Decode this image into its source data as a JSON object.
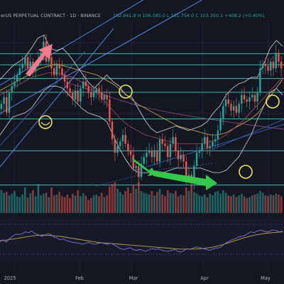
{
  "header": {
    "symbol": "erUS PERPETUAL CONTRACT · 1D · BINANCE",
    "ohlc": "102,941.9  H 106,085.0  L 101,754.0  C 103,350.1  +408.2 (+0.40%)"
  },
  "chart_data": {
    "type": "candlestick",
    "title": "erUS PERPETUAL CONTRACT · 1D · BINANCE",
    "timeframe": "1D",
    "exchange": "BINANCE",
    "x_tick_labels": [
      "2025",
      "Feb",
      "Mar",
      "Apr",
      "May"
    ],
    "ohlc": {
      "open": 102941.9,
      "high": 106085.0,
      "low": 101754.0,
      "close": 103350.1,
      "change": 408.2,
      "change_pct": 0.4
    },
    "grid": true,
    "colors": {
      "background": "#131722",
      "up": "#26a69a",
      "down": "#ef5350",
      "horizontal_levels": "#4dd0b8",
      "bollinger": "#d1d4dc",
      "trendline": "#5c8df6",
      "highlight_circle": "#f2e35a",
      "bearish_arrow": "#f07b8a",
      "bullish_arrow": "#35c84b",
      "rsi_line": "#7e6fd6",
      "rsi_ma": "#c8a24a"
    },
    "series": [
      {
        "type": "candles",
        "close": [
          95.0,
          96.5,
          93.0,
          97.5,
          99.0,
          100.0,
          101.5,
          103.0,
          104.0,
          105.5,
          103.0,
          104.5,
          102.5,
          103.5,
          105.0,
          106.5,
          109.0,
          104.5,
          105.5,
          103.0,
          101.5,
          104.0,
          103.0,
          101.5,
          100.0,
          98.5,
          97.5,
          96.0,
          98.0,
          95.5,
          98.5,
          100.0,
          99.0,
          97.5,
          96.5,
          97.5,
          98.5,
          97.5,
          96.0,
          97.0,
          96.0,
          91.0,
          87.0,
          84.0,
          85.5,
          86.5,
          88.0,
          86.0,
          84.5,
          83.5,
          80.5,
          81.0,
          78.5,
          81.5,
          83.0,
          84.0,
          84.5,
          83.0,
          84.5,
          82.0,
          87.0,
          86.0,
          85.5,
          83.0,
          86.0,
          87.5,
          84.5,
          82.5,
          83.5,
          82.0,
          78.5,
          79.0,
          77.5,
          81.0,
          84.0,
          84.5,
          86.0,
          87.5,
          85.0,
          85.5,
          86.5,
          87.0,
          89.0,
          91.5,
          94.5,
          96.0,
          95.0,
          93.5,
          94.5,
          93.0,
          95.0,
          97.0,
          96.0,
          95.5,
          96.5,
          97.0,
          95.5,
          97.5,
          103.0,
          104.0,
          103.5,
          102.5,
          104.5,
          103.0,
          106.5,
          104.5,
          103.0
        ],
        "volume": [
          52,
          46,
          48,
          40,
          44,
          50,
          38,
          36,
          42,
          58,
          35,
          45,
          52,
          38,
          66,
          40,
          44,
          46,
          36,
          58,
          40,
          42,
          48,
          38,
          36,
          42,
          34,
          44,
          40,
          52,
          38,
          45,
          40,
          30,
          34,
          40,
          42,
          38,
          46,
          36,
          40,
          60,
          66,
          70,
          55,
          48,
          42,
          50,
          58,
          45,
          62,
          55,
          70,
          50,
          46,
          44,
          42,
          50,
          40,
          48,
          55,
          42,
          38,
          52,
          46,
          44,
          50,
          38,
          42,
          40,
          58,
          50,
          62,
          48,
          44,
          40,
          38,
          42,
          36,
          44,
          40,
          48,
          50,
          44,
          52,
          46,
          40,
          38,
          42,
          36,
          40,
          44,
          38,
          34,
          36,
          40,
          42,
          44,
          50,
          46,
          40,
          38,
          42,
          40,
          44,
          42,
          38
        ]
      },
      {
        "type": "horizontal_levels",
        "values": [
          106.3,
          103.8,
          100.7,
          97.6,
          91.6,
          84.4,
          76.7
        ]
      },
      {
        "type": "bollinger",
        "upper": [
          100.5,
          102,
          103.5,
          104.5,
          105.5,
          107.5,
          109.8,
          110.5,
          107.5,
          107,
          107.5,
          106,
          104,
          102,
          100,
          98.5,
          100,
          101.5,
          100,
          99,
          97,
          96.5,
          94,
          91.5,
          89.5,
          88.5,
          89,
          89.5,
          90,
          89.5,
          89,
          89.5,
          90,
          91,
          93,
          94.5,
          97,
          98.5,
          99.5,
          100,
          101,
          101,
          104,
          107.5,
          109.3,
          108
        ],
        "lower": [
          88,
          90,
          92,
          92.5,
          93,
          94,
          96,
          98,
          99,
          99,
          98.5,
          97,
          95.5,
          94,
          93,
          92.5,
          92,
          91,
          88,
          85,
          82.5,
          80.5,
          79.5,
          79.5,
          79.5,
          79.5,
          79.5,
          80,
          80.5,
          80.5,
          80.5,
          80.5,
          80.5,
          80,
          79.5,
          79.5,
          80,
          81.5,
          83,
          85.5,
          88,
          91.5,
          94.5,
          97.5,
          98.5,
          97
        ]
      },
      {
        "type": "moving_averages",
        "ma_a": [
          98,
          99,
          100,
          101,
          102,
          103,
          103.5,
          104,
          103.5,
          103,
          102.5,
          102,
          101.5,
          100.5,
          99.5,
          98,
          96.5,
          95,
          94,
          93,
          92,
          91,
          90,
          89.5,
          89,
          88.5,
          88,
          88,
          88.5,
          89.5,
          90.5,
          91.5,
          93,
          95.5,
          98,
          100.5
        ],
        "ma_b": [
          97,
          98,
          99,
          100,
          101,
          101.5,
          102,
          102,
          101.5,
          101,
          100,
          99,
          97.5,
          95.5,
          93.5,
          91.5,
          90,
          89,
          88,
          87.5,
          87,
          86.5,
          86,
          86,
          86,
          86,
          86.5,
          87,
          88,
          89.5,
          91,
          93,
          95,
          97,
          99,
          101
        ]
      },
      {
        "type": "trendlines",
        "count": 6
      },
      {
        "type": "annotations",
        "circles": 4,
        "arrows": [
          "bearish-top",
          "bearish-rsi",
          "bullish-divergence-price",
          "bullish-divergence-rsi"
        ]
      },
      {
        "type": "rsi",
        "values": [
          48,
          52,
          47,
          55,
          60,
          65,
          64,
          66,
          70,
          68,
          72,
          66,
          64,
          60,
          62,
          66,
          64,
          58,
          56,
          52,
          54,
          50,
          48,
          46,
          45,
          44,
          42,
          44,
          46,
          43,
          42,
          44,
          45,
          43,
          42,
          44,
          40,
          36,
          32,
          30,
          32,
          34,
          30,
          28,
          30,
          28,
          26,
          30,
          32,
          30,
          32,
          28,
          27,
          26,
          28,
          30,
          26,
          24,
          28,
          32,
          30,
          34,
          36,
          34,
          32,
          30,
          28,
          31,
          33,
          34,
          38,
          44,
          48,
          52,
          54,
          58,
          60,
          62,
          66,
          70,
          68,
          72,
          74,
          72,
          70,
          72,
          74,
          73,
          70,
          72
        ],
        "ma": [
          50,
          51,
          53,
          55,
          57,
          59,
          61,
          62,
          63,
          62,
          61,
          60,
          58,
          56,
          54,
          52,
          50,
          48,
          46,
          45,
          44,
          43,
          42,
          41,
          40,
          39,
          38,
          37,
          36,
          35,
          34,
          33,
          32,
          31,
          31,
          31,
          31,
          32,
          33,
          35,
          38,
          41,
          45,
          49,
          53,
          57,
          60,
          63,
          65,
          67,
          68,
          69,
          70
        ]
      }
    ]
  }
}
